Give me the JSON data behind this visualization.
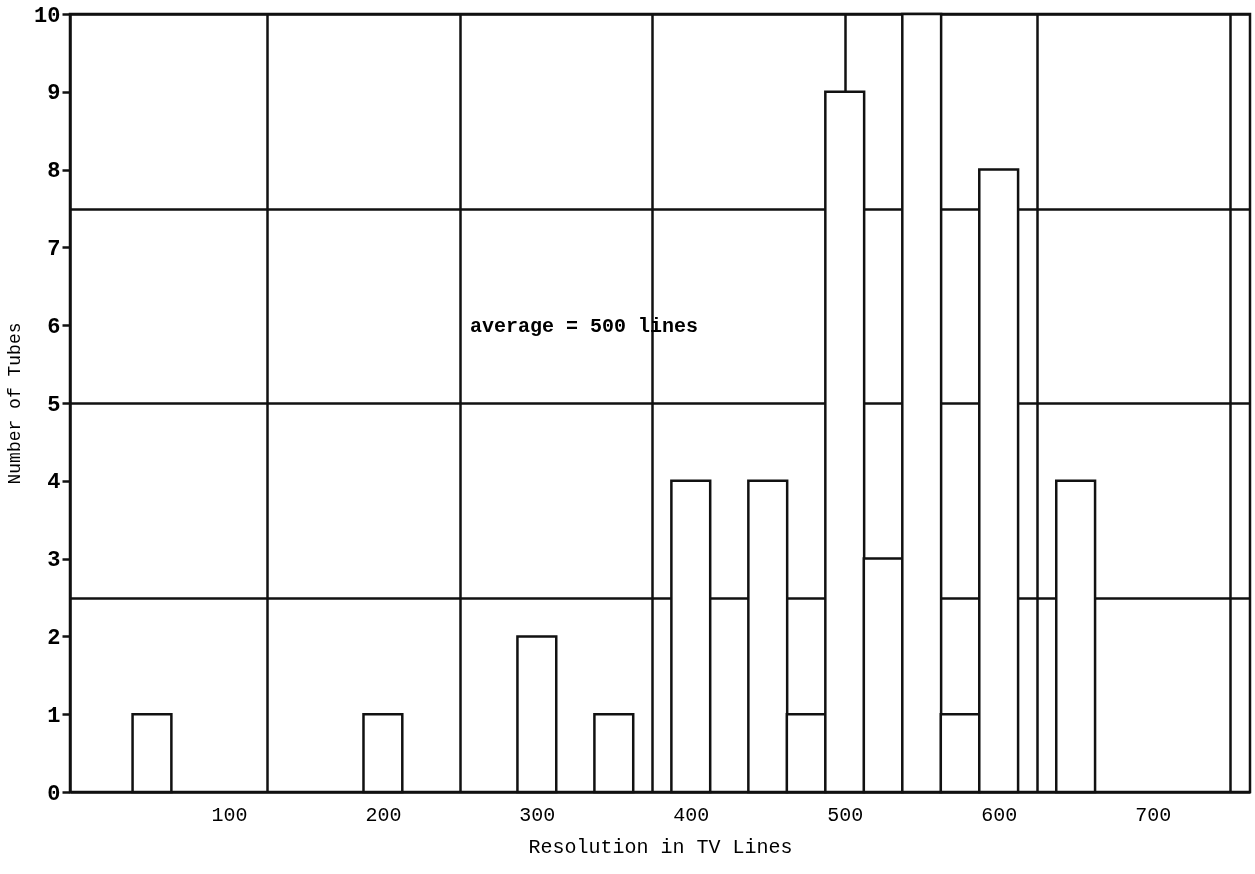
{
  "chart_data": {
    "type": "bar",
    "xlabel": "Resolution in TV Lines",
    "ylabel": "Number of Tubes",
    "x": [
      50,
      200,
      300,
      350,
      400,
      450,
      475,
      500,
      525,
      550,
      575,
      600,
      650
    ],
    "values": [
      1,
      1,
      2,
      1,
      4,
      4,
      1,
      9,
      3,
      10,
      1,
      8,
      4
    ],
    "color": "#ffffff",
    "xlim": [
      0,
      760
    ],
    "xticks": [
      100,
      {
        "value": 125,
        "label": null
      },
      200,
      {
        "value": 250,
        "label": null
      },
      300,
      {
        "value": 375,
        "label": null
      },
      400,
      500,
      {
        "value": 500,
        "label": null
      },
      600,
      {
        "value": 625,
        "label": null
      },
      700,
      {
        "value": 750,
        "label": null
      }
    ],
    "ylim": [
      0,
      10
    ],
    "yticks": [
      0,
      1,
      2,
      {
        "value": 2.5,
        "label": null
      },
      3,
      4,
      {
        "value": 5,
        "label": "5"
      },
      6,
      7,
      {
        "value": 7.5,
        "label": null
      },
      8,
      9,
      {
        "value": 10,
        "label": "10"
      }
    ],
    "grid": true,
    "annotations": [
      "average = 500 lines"
    ]
  }
}
